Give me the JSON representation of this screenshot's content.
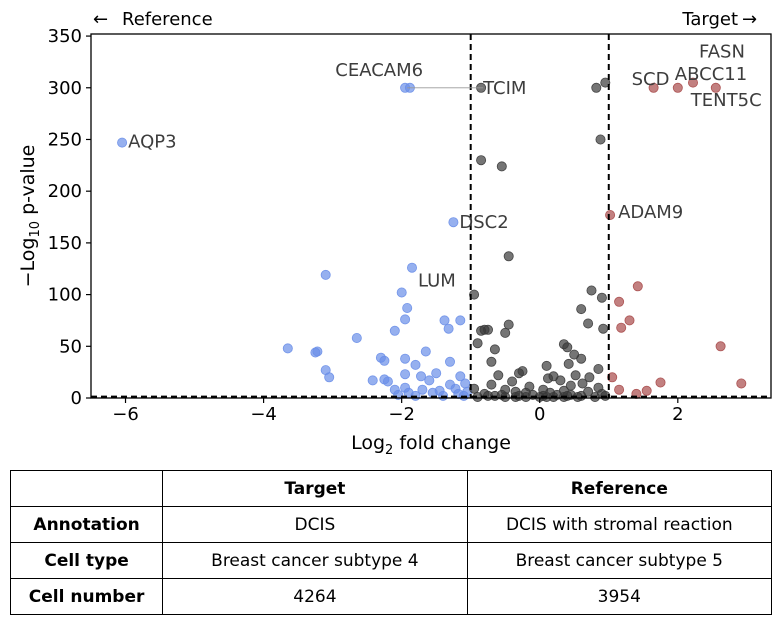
{
  "chart_data": {
    "type": "scatter",
    "xlabel_main": "Log",
    "xlabel_sub": "2",
    "xlabel_rest": " fold change",
    "ylabel_pre": "−Log",
    "ylabel_sub": "10",
    "ylabel_rest": " p-value",
    "xlim": [
      -6.5,
      3.35
    ],
    "ylim": [
      0,
      352
    ],
    "xticks": [
      -6,
      -4,
      -2,
      0,
      2
    ],
    "xtick_labels": [
      "−6",
      "−4",
      "−2",
      "0",
      "2"
    ],
    "yticks": [
      0,
      50,
      100,
      150,
      200,
      250,
      300,
      350
    ],
    "ytick_labels": [
      "0",
      "50",
      "100",
      "150",
      "200",
      "250",
      "300",
      "350"
    ],
    "thresholds": {
      "log2fc": [
        -1,
        1
      ],
      "pvalue_line": 1.3
    },
    "direction_left": "Reference",
    "direction_right": "Target",
    "arrow_left": "←",
    "arrow_right": "→",
    "colors": {
      "down": "#6a8ee8",
      "up": "#a84a4a",
      "ns": "#3a3a3a",
      "label": "#3d3d3d"
    },
    "series": [
      {
        "class": "down",
        "points": [
          [
            -6.05,
            247
          ],
          [
            -1.95,
            300
          ],
          [
            -1.88,
            300
          ],
          [
            -1.25,
            170
          ],
          [
            -1.85,
            126
          ],
          [
            -3.1,
            119
          ],
          [
            -2.0,
            102
          ],
          [
            -1.92,
            87
          ],
          [
            -1.95,
            76
          ],
          [
            -1.38,
            75
          ],
          [
            -1.15,
            75
          ],
          [
            -1.32,
            67
          ],
          [
            -2.1,
            65
          ],
          [
            -2.65,
            58
          ],
          [
            -3.65,
            48
          ],
          [
            -3.22,
            45
          ],
          [
            -3.25,
            44
          ],
          [
            -1.65,
            45
          ],
          [
            -2.3,
            39
          ],
          [
            -1.95,
            38
          ],
          [
            -2.25,
            36
          ],
          [
            -1.3,
            35
          ],
          [
            -1.8,
            32
          ],
          [
            -3.1,
            27
          ],
          [
            -1.95,
            23
          ],
          [
            -1.5,
            24
          ],
          [
            -3.05,
            20
          ],
          [
            -1.72,
            21
          ],
          [
            -1.15,
            21
          ],
          [
            -2.42,
            17
          ],
          [
            -2.25,
            18
          ],
          [
            -2.2,
            16
          ],
          [
            -1.6,
            17
          ],
          [
            -1.3,
            13
          ],
          [
            -1.08,
            14
          ],
          [
            -1.95,
            10
          ],
          [
            -2.1,
            8
          ],
          [
            -1.7,
            8
          ],
          [
            -1.45,
            7
          ],
          [
            -1.22,
            9
          ],
          [
            -1.9,
            5
          ],
          [
            -1.55,
            5
          ],
          [
            -1.18,
            4
          ],
          [
            -1.05,
            6
          ],
          [
            -1.4,
            2
          ],
          [
            -1.8,
            2
          ],
          [
            -2.05,
            3
          ],
          [
            -1.1,
            2
          ]
        ]
      },
      {
        "class": "up",
        "points": [
          [
            2.55,
            300
          ],
          [
            2.22,
            305
          ],
          [
            2.0,
            300
          ],
          [
            1.65,
            300
          ],
          [
            1.02,
            177
          ],
          [
            1.42,
            108
          ],
          [
            1.15,
            93
          ],
          [
            1.3,
            75
          ],
          [
            1.18,
            68
          ],
          [
            2.62,
            50
          ],
          [
            2.92,
            14
          ],
          [
            1.75,
            15
          ],
          [
            1.55,
            7
          ],
          [
            1.05,
            20
          ],
          [
            1.15,
            8
          ],
          [
            1.4,
            4
          ]
        ]
      },
      {
        "class": "ns",
        "points": [
          [
            0.95,
            305
          ],
          [
            0.82,
            300
          ],
          [
            -0.85,
            300
          ],
          [
            0.88,
            250
          ],
          [
            -0.85,
            230
          ],
          [
            -0.55,
            224
          ],
          [
            -0.45,
            137
          ],
          [
            -0.95,
            100
          ],
          [
            0.75,
            104
          ],
          [
            0.9,
            97
          ],
          [
            0.6,
            86
          ],
          [
            0.7,
            72
          ],
          [
            0.92,
            67
          ],
          [
            -0.45,
            71
          ],
          [
            -0.75,
            66
          ],
          [
            -0.8,
            66
          ],
          [
            -0.85,
            65
          ],
          [
            -0.5,
            63
          ],
          [
            0.35,
            52
          ],
          [
            0.4,
            49
          ],
          [
            -0.9,
            53
          ],
          [
            -0.65,
            47
          ],
          [
            -0.7,
            35
          ],
          [
            0.5,
            42
          ],
          [
            0.6,
            38
          ],
          [
            0.42,
            33
          ],
          [
            0.1,
            31
          ],
          [
            0.85,
            28
          ],
          [
            -0.25,
            26
          ],
          [
            -0.3,
            24
          ],
          [
            0.52,
            22
          ],
          [
            -0.6,
            22
          ],
          [
            0.2,
            21
          ],
          [
            0.72,
            20
          ],
          [
            0.12,
            19
          ],
          [
            0.3,
            17
          ],
          [
            -0.4,
            16
          ],
          [
            0.62,
            14
          ],
          [
            -0.7,
            13
          ],
          [
            0.45,
            12
          ],
          [
            -0.15,
            11
          ],
          [
            0.85,
            10
          ],
          [
            -0.95,
            9
          ],
          [
            0.05,
            8
          ],
          [
            -0.5,
            8
          ],
          [
            0.35,
            7
          ],
          [
            -0.35,
            6
          ],
          [
            0.7,
            6
          ],
          [
            0.15,
            5
          ],
          [
            -0.2,
            5
          ],
          [
            0.9,
            4
          ],
          [
            -0.8,
            4
          ],
          [
            0.45,
            3
          ],
          [
            -0.55,
            3
          ],
          [
            0.25,
            3
          ],
          [
            -0.1,
            3
          ],
          [
            0.6,
            2
          ],
          [
            -0.65,
            2
          ],
          [
            0.05,
            2
          ],
          [
            -0.9,
            1
          ],
          [
            0.8,
            1
          ],
          [
            0.35,
            1
          ],
          [
            -0.35,
            1
          ],
          [
            0.2,
            1
          ],
          [
            -0.2,
            1
          ],
          [
            0.55,
            1
          ],
          [
            -0.5,
            1
          ],
          [
            0.0,
            1
          ],
          [
            0.95,
            2
          ],
          [
            -0.75,
            2
          ],
          [
            0.4,
            2
          ],
          [
            -0.3,
            2
          ],
          [
            0.1,
            1
          ]
        ]
      }
    ],
    "annotations": [
      {
        "label": "CEACAM6",
        "x": -1.92,
        "y": 300
      },
      {
        "label": "TCIM",
        "x": -0.85,
        "y": 300
      },
      {
        "label": "AQP3",
        "x": -6.05,
        "y": 247
      },
      {
        "label": "DSC2",
        "x": -1.25,
        "y": 170
      },
      {
        "label": "LUM",
        "x": -1.85,
        "y": 126
      },
      {
        "label": "SCD",
        "x": 1.65,
        "y": 300
      },
      {
        "label": "FASN",
        "x": 2.22,
        "y": 305
      },
      {
        "label": "ABCC11",
        "x": 2.0,
        "y": 300
      },
      {
        "label": "TENT5C",
        "x": 2.55,
        "y": 300
      },
      {
        "label": "ADAM9",
        "x": 1.02,
        "y": 177
      }
    ]
  },
  "table": {
    "headers": [
      "",
      "Target",
      "Reference"
    ],
    "rows": [
      {
        "label": "Annotation",
        "target": "DCIS",
        "reference": "DCIS with stromal reaction"
      },
      {
        "label": "Cell type",
        "target": "Breast cancer subtype 4",
        "reference": "Breast cancer subtype 5"
      },
      {
        "label": "Cell number",
        "target": "4264",
        "reference": "3954"
      }
    ]
  }
}
